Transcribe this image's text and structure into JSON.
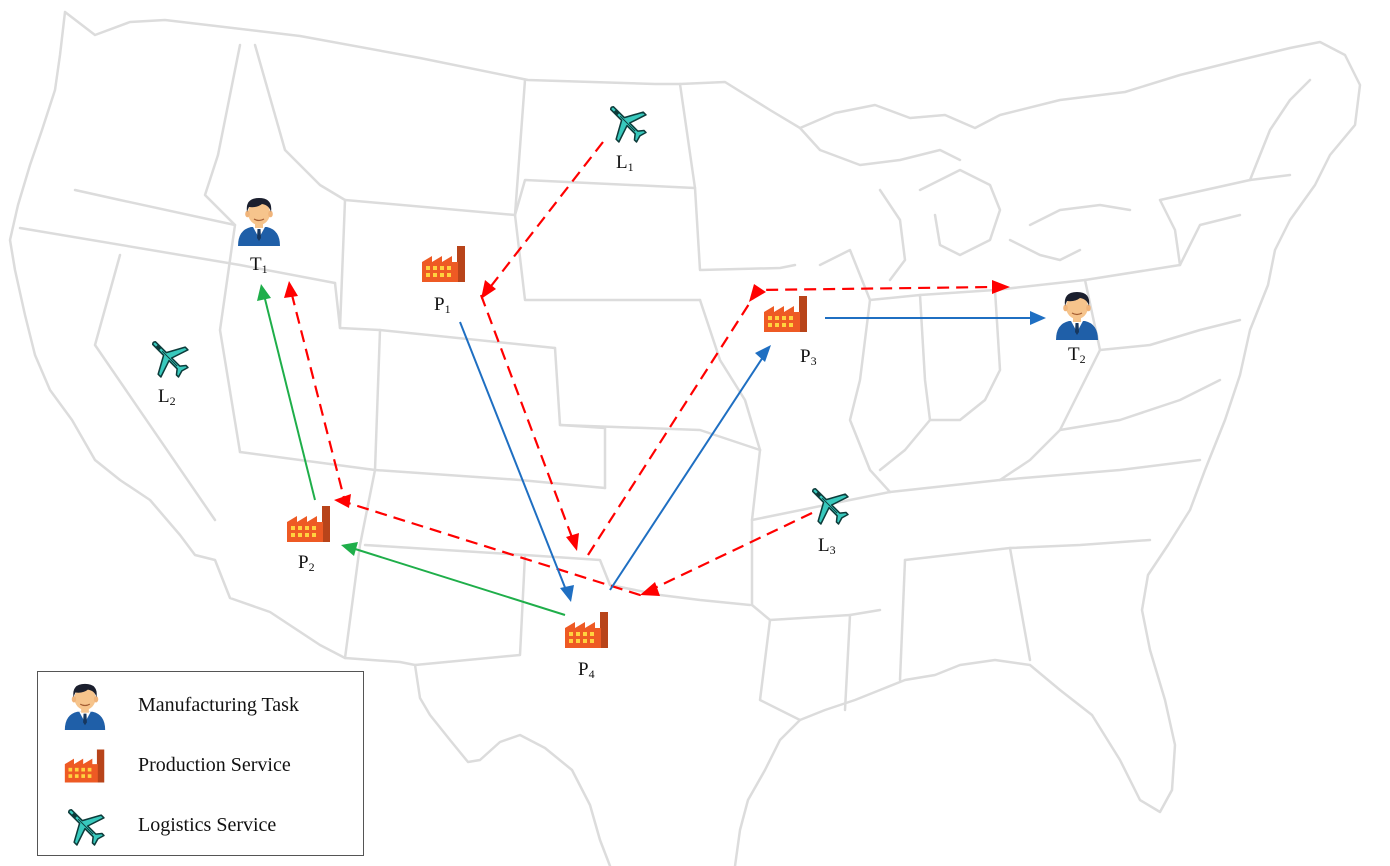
{
  "nodes": {
    "T1": {
      "letter": "T",
      "sub": "1",
      "type": "Manufacturing Task"
    },
    "T2": {
      "letter": "T",
      "sub": "2",
      "type": "Manufacturing Task"
    },
    "P1": {
      "letter": "P",
      "sub": "1",
      "type": "Production Service"
    },
    "P2": {
      "letter": "P",
      "sub": "2",
      "type": "Production Service"
    },
    "P3": {
      "letter": "P",
      "sub": "3",
      "type": "Production Service"
    },
    "P4": {
      "letter": "P",
      "sub": "4",
      "type": "Production Service"
    },
    "L1": {
      "letter": "L",
      "sub": "1",
      "type": "Logistics Service"
    },
    "L2": {
      "letter": "L",
      "sub": "2",
      "type": "Logistics Service"
    },
    "L3": {
      "letter": "L",
      "sub": "3",
      "type": "Logistics Service"
    }
  },
  "routes": [
    {
      "from": "L1",
      "to": "P1",
      "style": "red-dashed"
    },
    {
      "from": "P1",
      "to": "P4",
      "style": "red-dashed"
    },
    {
      "from": "P1",
      "to": "P4",
      "style": "blue-solid"
    },
    {
      "from": "P4",
      "to": "P3",
      "style": "red-dashed"
    },
    {
      "from": "P4",
      "to": "P3",
      "style": "blue-solid"
    },
    {
      "from": "P3",
      "to": "T2",
      "style": "red-dashed"
    },
    {
      "from": "P3",
      "to": "T2",
      "style": "blue-solid"
    },
    {
      "from": "L3",
      "to": "P4",
      "style": "red-dashed"
    },
    {
      "from": "P4",
      "to": "P2",
      "style": "red-dashed"
    },
    {
      "from": "P4",
      "to": "P2",
      "style": "green-solid"
    },
    {
      "from": "P2",
      "to": "T1",
      "style": "red-dashed"
    },
    {
      "from": "P2",
      "to": "T1",
      "style": "green-solid"
    }
  ],
  "legend": {
    "task_label": "Manufacturing Task",
    "production_label": "Production Service",
    "logistics_label": "Logistics Service"
  },
  "colors": {
    "red_route": "#ff0000",
    "blue_route": "#1f6fc2",
    "green_route": "#1fae4a",
    "map_border": "#dcdcdc",
    "factory": "#e8501c",
    "plane": "#2ec4b6",
    "person_suit": "#1f5fa8"
  },
  "icons": {
    "task": "person-icon",
    "production": "factory-icon",
    "logistics": "airplane-icon"
  }
}
